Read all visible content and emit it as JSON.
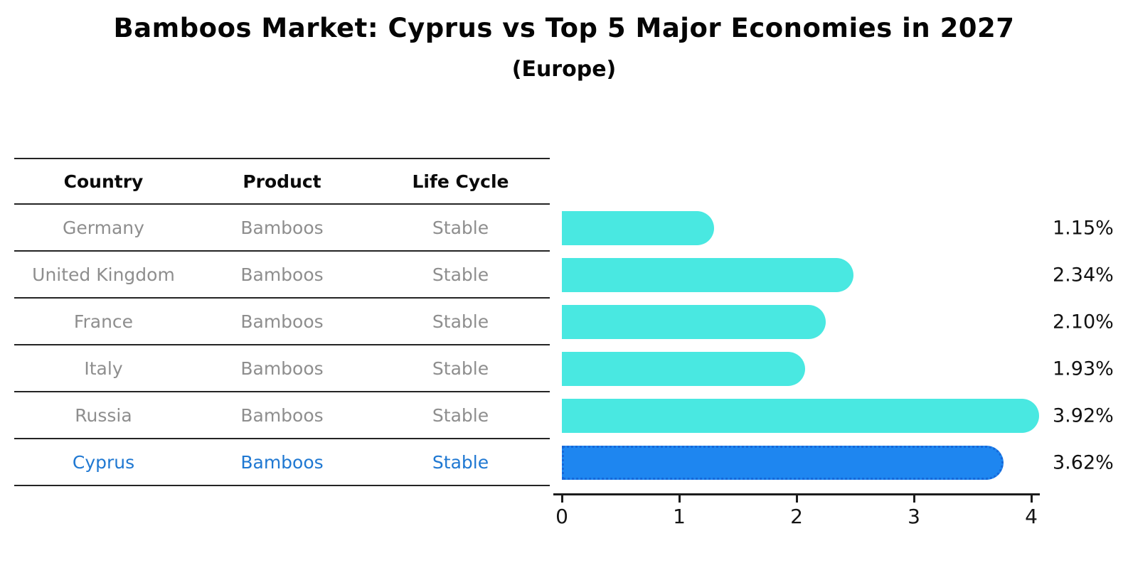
{
  "title": "Bamboos Market: Cyprus vs Top 5 Major Economies in 2027",
  "subtitle": "(Europe)",
  "table": {
    "headers": {
      "country": "Country",
      "product": "Product",
      "life_cycle": "Life Cycle"
    },
    "rows": [
      {
        "country": "Germany",
        "product": "Bamboos",
        "life_cycle": "Stable",
        "highlight": false
      },
      {
        "country": "United Kingdom",
        "product": "Bamboos",
        "life_cycle": "Stable",
        "highlight": false
      },
      {
        "country": "France",
        "product": "Bamboos",
        "life_cycle": "Stable",
        "highlight": false
      },
      {
        "country": "Italy",
        "product": "Bamboos",
        "life_cycle": "Stable",
        "highlight": false
      },
      {
        "country": "Russia",
        "product": "Bamboos",
        "life_cycle": "Stable",
        "highlight": false
      },
      {
        "country": "Cyprus",
        "product": "Bamboos",
        "life_cycle": "Stable",
        "highlight": true
      }
    ]
  },
  "chart_data": {
    "type": "bar",
    "orientation": "horizontal",
    "title": "Bamboos Market: Cyprus vs Top 5 Major Economies in 2027 (Europe)",
    "categories": [
      "Germany",
      "United Kingdom",
      "France",
      "Italy",
      "Russia",
      "Cyprus"
    ],
    "values": [
      1.15,
      2.34,
      2.1,
      1.93,
      3.92,
      3.62
    ],
    "data_labels": [
      "1.15%",
      "2.34%",
      "2.10%",
      "1.93%",
      "3.92%",
      "3.62%"
    ],
    "x_ticks": [
      "0",
      "1",
      "2",
      "3",
      "4"
    ],
    "xlim": [
      0,
      4.1
    ],
    "grid": false,
    "legend": "none",
    "bar_color": "#49E8E1",
    "highlight_bar_color": "#1E86F0",
    "highlight_bar_border": "#1668D9"
  },
  "colors": {
    "row_text": "#8E8E8E",
    "row_text_highlight": "#1F78D2",
    "line": "#242424",
    "axis": "#1c1c1c",
    "title_text": "#050505",
    "value_label_text": "#111111"
  }
}
